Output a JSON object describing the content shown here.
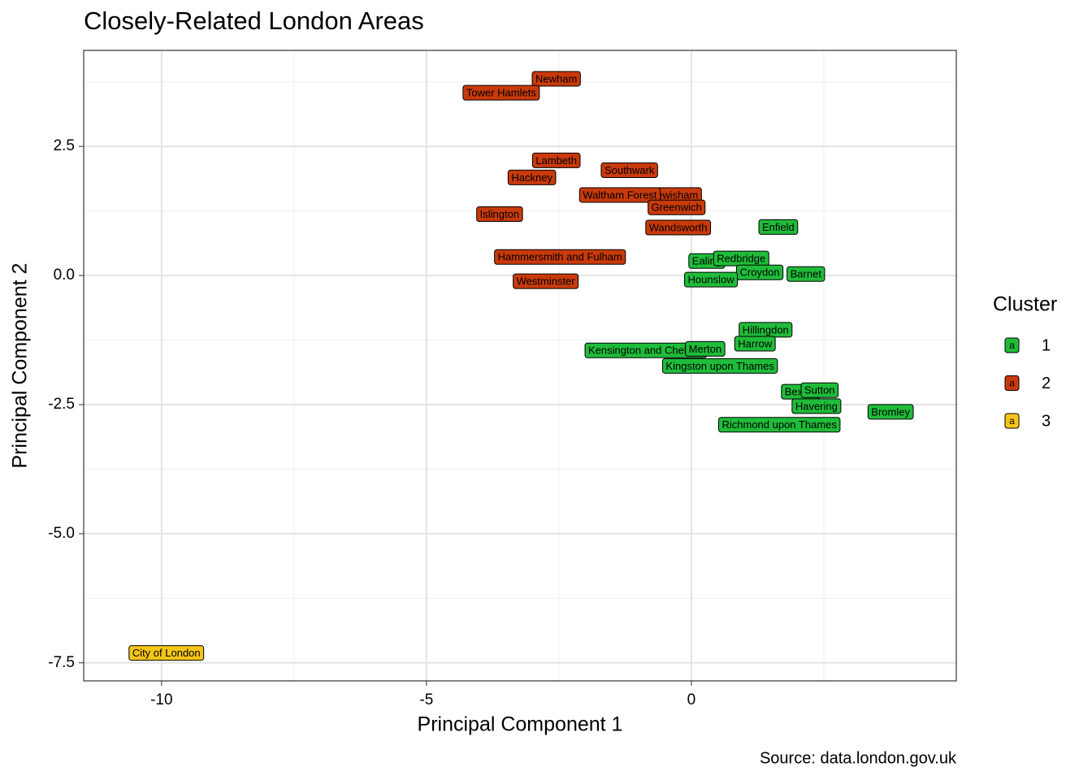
{
  "chart_data": {
    "type": "scatter",
    "title": "Closely-Related London Areas",
    "caption": "Source: data.london.gov.uk",
    "x_label": "Principal Component 1",
    "y_label": "Principal Component 2",
    "legend_title": "Cluster",
    "legend_key_text": "a",
    "legend_position": "right",
    "grid": true,
    "xlim": [
      -11.47,
      5.0
    ],
    "ylim": [
      -7.85,
      4.36
    ],
    "xticks": [
      -10,
      -5,
      0
    ],
    "yticks": [
      2.5,
      {
        "value": 0,
        "label": "0.0"
      },
      -2.5,
      {
        "value": -5,
        "label": "-5.0"
      },
      -7.5
    ],
    "xminor": [
      -7.5,
      -2.5,
      2.5
    ],
    "yminor": [
      3.75,
      1.25,
      -1.25,
      -3.75,
      -6.25
    ],
    "series": [
      {
        "name": "1",
        "color": "#1fbc3a",
        "labels": [
          "Enfield",
          "Ealing",
          "Redbridge",
          "Croydon",
          "Barnet",
          "Hounslow",
          "Hillingdon",
          "Harrow",
          "Kensington and Chelsea",
          "Merton",
          "Kingston upon Thames",
          "Bexley",
          "Sutton",
          "Havering",
          "Bromley",
          "Richmond upon Thames"
        ],
        "x": [
          1.64,
          0.29,
          0.94,
          1.29,
          2.16,
          0.37,
          1.4,
          1.2,
          -0.86,
          0.26,
          0.54,
          2.06,
          2.42,
          2.36,
          3.76,
          1.66
        ],
        "values": [
          0.94,
          0.28,
          0.33,
          0.06,
          0.03,
          -0.08,
          -1.05,
          -1.32,
          -1.45,
          -1.42,
          -1.75,
          -2.25,
          -2.22,
          -2.53,
          -2.64,
          -2.89
        ]
      },
      {
        "name": "2",
        "color": "#c93a0a",
        "labels": [
          "Newham",
          "Tower Hamlets",
          "Lambeth",
          "Southwark",
          "Hackney",
          "Lewisham",
          "Waltham Forest",
          "Greenwich",
          "Islington",
          "Wandsworth",
          "Hammersmith and Fulham",
          "Westminster"
        ],
        "x": [
          -2.55,
          -3.59,
          -2.55,
          -1.17,
          -3.01,
          -0.32,
          -1.35,
          -0.28,
          -3.62,
          -0.25,
          -2.48,
          -2.75
        ],
        "values": [
          3.81,
          3.54,
          2.23,
          2.04,
          1.9,
          1.56,
          1.56,
          1.32,
          1.19,
          0.93,
          0.36,
          -0.11
        ]
      },
      {
        "name": "3",
        "color": "#f5c518",
        "labels": [
          "City of London"
        ],
        "x": [
          -9.91
        ],
        "values": [
          -7.31
        ]
      }
    ]
  }
}
